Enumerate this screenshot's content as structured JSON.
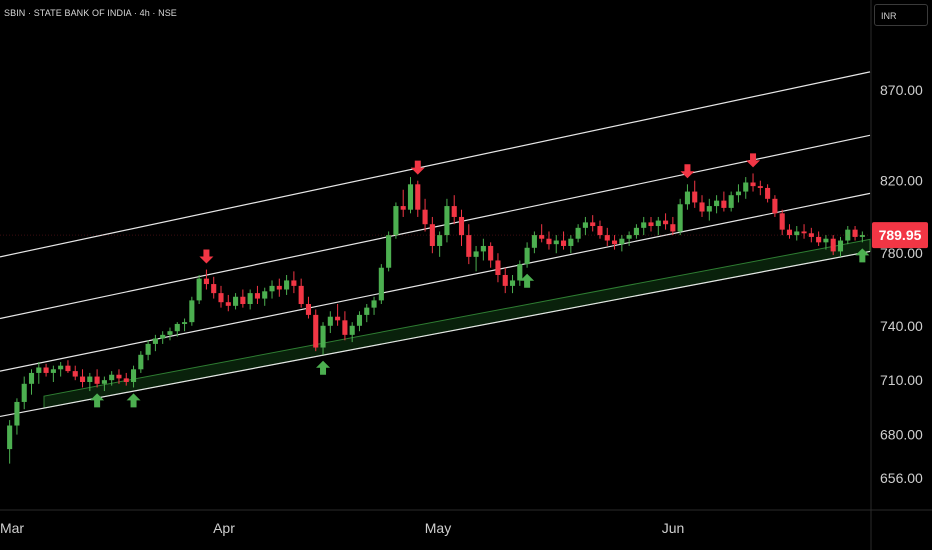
{
  "header": {
    "symbol_line": "SBIN · STATE BANK OF INDIA · 4h · NSE"
  },
  "currency": "INR",
  "colors": {
    "up": "#4caf50",
    "down": "#f23645",
    "line": "#e6e6e6",
    "band": "#1b5e20",
    "axis_text": "#cfcfcf",
    "price_tag": "#f23645",
    "background": "#000000"
  },
  "chart_data": {
    "type": "candlestick",
    "title": "SBIN · STATE BANK OF INDIA · 4h · NSE",
    "y_ticks": [
      "870.00",
      "820.00",
      "780.00",
      "740.00",
      "710.00",
      "680.00",
      "656.00"
    ],
    "x_ticks": [
      "Mar",
      "Apr",
      "May",
      "Jun"
    ],
    "last_price": "789.95",
    "grid": false,
    "ohlc": [
      [
        672,
        688,
        664,
        685
      ],
      [
        685,
        700,
        680,
        698
      ],
      [
        698,
        712,
        694,
        708
      ],
      [
        708,
        716,
        702,
        714
      ],
      [
        714,
        720,
        708,
        717
      ],
      [
        717,
        719,
        712,
        714
      ],
      [
        714,
        718,
        709,
        716
      ],
      [
        716,
        720,
        712,
        718
      ],
      [
        718,
        721,
        714,
        715
      ],
      [
        715,
        718,
        710,
        712
      ],
      [
        712,
        716,
        706,
        709
      ],
      [
        709,
        714,
        704,
        712
      ],
      [
        712,
        716,
        706,
        708
      ],
      [
        708,
        712,
        704,
        710
      ],
      [
        710,
        715,
        707,
        713
      ],
      [
        713,
        716,
        708,
        711
      ],
      [
        711,
        714,
        707,
        709
      ],
      [
        709,
        718,
        706,
        716
      ],
      [
        716,
        726,
        714,
        724
      ],
      [
        724,
        732,
        721,
        730
      ],
      [
        730,
        735,
        726,
        733
      ],
      [
        733,
        737,
        730,
        735
      ],
      [
        735,
        739,
        732,
        737
      ],
      [
        737,
        742,
        734,
        741
      ],
      [
        741,
        744,
        737,
        742
      ],
      [
        742,
        756,
        740,
        754
      ],
      [
        754,
        768,
        752,
        766
      ],
      [
        766,
        771,
        760,
        763
      ],
      [
        763,
        767,
        755,
        758
      ],
      [
        758,
        762,
        750,
        753
      ],
      [
        753,
        757,
        748,
        751
      ],
      [
        751,
        758,
        749,
        756
      ],
      [
        756,
        760,
        750,
        752
      ],
      [
        752,
        760,
        749,
        758
      ],
      [
        758,
        762,
        752,
        755
      ],
      [
        755,
        761,
        751,
        759
      ],
      [
        759,
        765,
        755,
        762
      ],
      [
        762,
        766,
        756,
        760
      ],
      [
        760,
        768,
        757,
        765
      ],
      [
        765,
        770,
        758,
        762
      ],
      [
        762,
        766,
        750,
        752
      ],
      [
        752,
        756,
        744,
        746
      ],
      [
        746,
        749,
        726,
        728
      ],
      [
        728,
        742,
        724,
        740
      ],
      [
        740,
        748,
        736,
        745
      ],
      [
        745,
        752,
        740,
        743
      ],
      [
        743,
        748,
        732,
        735
      ],
      [
        735,
        742,
        731,
        740
      ],
      [
        740,
        748,
        737,
        746
      ],
      [
        746,
        752,
        742,
        750
      ],
      [
        750,
        756,
        746,
        754
      ],
      [
        754,
        774,
        752,
        772
      ],
      [
        772,
        792,
        770,
        790
      ],
      [
        790,
        808,
        788,
        806
      ],
      [
        806,
        815,
        800,
        804
      ],
      [
        804,
        822,
        802,
        818
      ],
      [
        818,
        820,
        800,
        804
      ],
      [
        804,
        810,
        792,
        796
      ],
      [
        796,
        800,
        780,
        784
      ],
      [
        784,
        792,
        778,
        790
      ],
      [
        790,
        810,
        786,
        806
      ],
      [
        806,
        812,
        796,
        800
      ],
      [
        800,
        804,
        784,
        790
      ],
      [
        790,
        796,
        774,
        778
      ],
      [
        778,
        784,
        770,
        781
      ],
      [
        781,
        788,
        776,
        784
      ],
      [
        784,
        786,
        772,
        776
      ],
      [
        776,
        780,
        764,
        768
      ],
      [
        768,
        772,
        758,
        762
      ],
      [
        762,
        768,
        758,
        765
      ],
      [
        765,
        776,
        762,
        774
      ],
      [
        774,
        786,
        772,
        783
      ],
      [
        783,
        792,
        780,
        790
      ],
      [
        790,
        796,
        786,
        788
      ],
      [
        788,
        792,
        782,
        785
      ],
      [
        785,
        790,
        780,
        787
      ],
      [
        787,
        792,
        782,
        784
      ],
      [
        784,
        790,
        780,
        788
      ],
      [
        788,
        796,
        786,
        794
      ],
      [
        794,
        800,
        790,
        797
      ],
      [
        797,
        801,
        792,
        795
      ],
      [
        795,
        798,
        788,
        790
      ],
      [
        790,
        794,
        784,
        787
      ],
      [
        787,
        790,
        782,
        785
      ],
      [
        785,
        790,
        781,
        788
      ],
      [
        788,
        792,
        784,
        790
      ],
      [
        790,
        796,
        788,
        794
      ],
      [
        794,
        800,
        790,
        797
      ],
      [
        797,
        800,
        792,
        795
      ],
      [
        795,
        800,
        790,
        798
      ],
      [
        798,
        802,
        793,
        796
      ],
      [
        796,
        800,
        790,
        792
      ],
      [
        792,
        810,
        790,
        807
      ],
      [
        807,
        818,
        804,
        814
      ],
      [
        814,
        820,
        805,
        808
      ],
      [
        808,
        812,
        800,
        803
      ],
      [
        803,
        810,
        798,
        806
      ],
      [
        806,
        812,
        802,
        809
      ],
      [
        809,
        814,
        803,
        805
      ],
      [
        805,
        814,
        803,
        812
      ],
      [
        812,
        818,
        808,
        814
      ],
      [
        814,
        822,
        810,
        819
      ],
      [
        819,
        824,
        814,
        817
      ],
      [
        817,
        820,
        812,
        816
      ],
      [
        816,
        818,
        808,
        810
      ],
      [
        810,
        812,
        800,
        802
      ],
      [
        802,
        804,
        790,
        793
      ],
      [
        793,
        796,
        788,
        790
      ],
      [
        790,
        795,
        787,
        792
      ],
      [
        792,
        796,
        788,
        791
      ],
      [
        791,
        794,
        786,
        789
      ],
      [
        789,
        792,
        784,
        786
      ],
      [
        786,
        790,
        782,
        788
      ],
      [
        788,
        790,
        779,
        781
      ],
      [
        781,
        789,
        778,
        787
      ],
      [
        787,
        795,
        785,
        793
      ],
      [
        793,
        795,
        787,
        789
      ],
      [
        789,
        792,
        786,
        790
      ]
    ],
    "channel_lines": [
      {
        "name": "upper",
        "x0": 0,
        "y0": 778,
        "x1": 1,
        "y1": 880
      },
      {
        "name": "upper-mid",
        "x0": 0,
        "y0": 744,
        "x1": 1,
        "y1": 845
      },
      {
        "name": "lower-mid",
        "x0": 0,
        "y0": 715,
        "x1": 1,
        "y1": 813
      },
      {
        "name": "support",
        "x0": 0,
        "y0": 690,
        "x1": 1,
        "y1": 781
      }
    ],
    "markers": {
      "down": [
        {
          "i": 27
        },
        {
          "i": 56
        },
        {
          "i": 93
        },
        {
          "i": 102
        }
      ],
      "up": [
        {
          "i": 12
        },
        {
          "i": 17
        },
        {
          "i": 43
        },
        {
          "i": 71
        },
        {
          "i": 117
        }
      ]
    }
  }
}
